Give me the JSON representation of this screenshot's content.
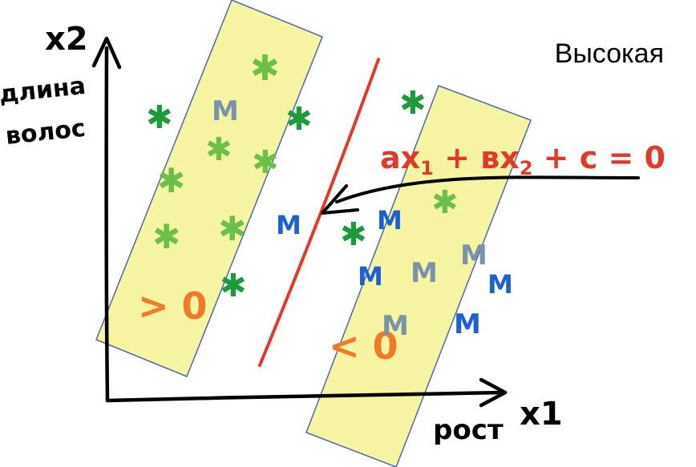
{
  "corner_label": "Высокая",
  "axes": {
    "y_label": "x2",
    "y_description": [
      "длина",
      "волос"
    ],
    "x_label": "x1",
    "x_description": "рост"
  },
  "equation": {
    "left": "ax",
    "left_sub": "1",
    "mid": " + вx",
    "mid_sub": "2",
    "right": " + c = 0"
  },
  "region_left_label": "> 0",
  "region_right_label": "< 0",
  "markers": {
    "star_glyph": "✱",
    "m_glyph": "M"
  },
  "colors": {
    "band_fill": "#f7f4a4",
    "band_stroke": "#4a6aa8",
    "separator_line": "#e03a2a",
    "equation_text": "#e03a2a",
    "region_label": "#f07a2a",
    "star_dark_green": "#1f9a3a",
    "star_light_green": "#6cc04a",
    "m_gray_blue": "#7a93a8",
    "m_blue": "#1f5fd4",
    "axis": "#000000"
  }
}
